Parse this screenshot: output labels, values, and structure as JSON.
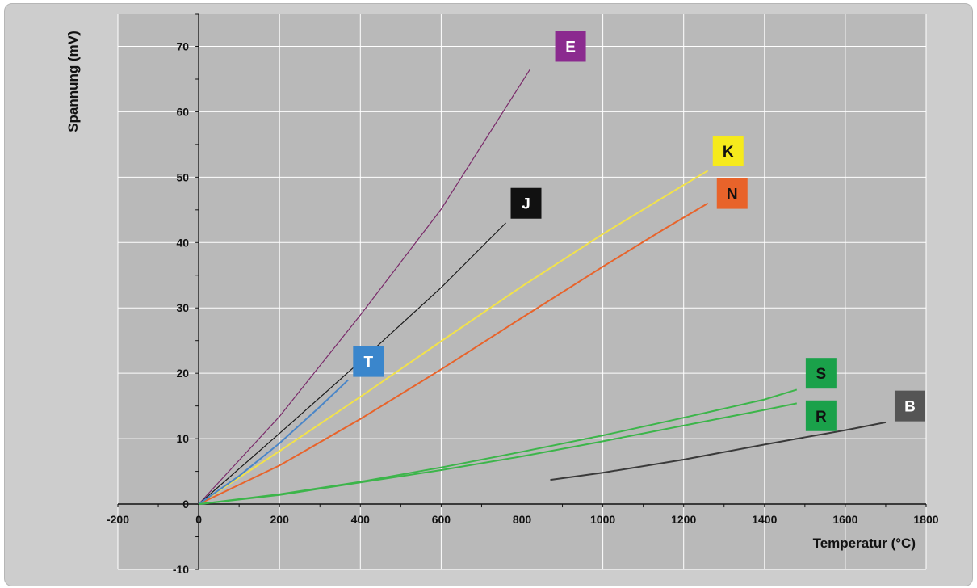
{
  "chart_data": {
    "type": "line",
    "title": "",
    "xlabel": "Temperatur (°C)",
    "ylabel": "Spannung (mV)",
    "xlim": [
      -200,
      1800
    ],
    "ylim": [
      -10,
      75
    ],
    "x_ticks": [
      -200,
      0,
      200,
      400,
      600,
      800,
      1000,
      1200,
      1400,
      1600,
      1800
    ],
    "y_ticks": [
      -10,
      0,
      10,
      20,
      30,
      40,
      50,
      60,
      70
    ],
    "grid": true,
    "legend": "inline labels",
    "series": [
      {
        "name": "E",
        "color": "#7a2a6a",
        "label_bg": "#8b2a8f",
        "label_color": "#ffffff",
        "label_at": [
          920,
          70
        ],
        "points": [
          [
            0,
            0
          ],
          [
            200,
            13.4
          ],
          [
            400,
            28.9
          ],
          [
            600,
            45.1
          ],
          [
            820,
            66.5
          ]
        ]
      },
      {
        "name": "J",
        "color": "#1a1a1a",
        "label_bg": "#111111",
        "label_color": "#ffffff",
        "label_at": [
          810,
          46
        ],
        "points": [
          [
            0,
            0
          ],
          [
            200,
            10.8
          ],
          [
            400,
            21.8
          ],
          [
            600,
            33.1
          ],
          [
            760,
            43.0
          ]
        ]
      },
      {
        "name": "K",
        "color": "#f2e24a",
        "label_bg": "#f6ea1c",
        "label_color": "#111111",
        "label_at": [
          1310,
          54
        ],
        "points": [
          [
            0,
            0
          ],
          [
            200,
            8.1
          ],
          [
            400,
            16.4
          ],
          [
            600,
            24.9
          ],
          [
            800,
            33.3
          ],
          [
            1000,
            41.3
          ],
          [
            1200,
            48.8
          ],
          [
            1260,
            51.0
          ]
        ]
      },
      {
        "name": "N",
        "color": "#e8632a",
        "label_bg": "#e8632a",
        "label_color": "#111111",
        "label_at": [
          1320,
          47.5
        ],
        "points": [
          [
            0,
            0
          ],
          [
            200,
            5.9
          ],
          [
            400,
            13.0
          ],
          [
            600,
            20.6
          ],
          [
            800,
            28.5
          ],
          [
            1000,
            36.3
          ],
          [
            1150,
            42.0
          ],
          [
            1260,
            46.0
          ]
        ]
      },
      {
        "name": "T",
        "color": "#4a86c8",
        "label_bg": "#3a86cc",
        "label_color": "#ffffff",
        "label_at": [
          420,
          21.8
        ],
        "points": [
          [
            0,
            0
          ],
          [
            100,
            4.3
          ],
          [
            200,
            9.3
          ],
          [
            300,
            14.9
          ],
          [
            370,
            19.0
          ]
        ]
      },
      {
        "name": "S",
        "color": "#3cb54a",
        "label_bg": "#1aa14a",
        "label_color": "#111111",
        "label_at": [
          1540,
          20
        ],
        "points": [
          [
            0,
            0
          ],
          [
            200,
            1.4
          ],
          [
            400,
            3.3
          ],
          [
            600,
            5.2
          ],
          [
            800,
            7.3
          ],
          [
            1000,
            9.6
          ],
          [
            1200,
            12.0
          ],
          [
            1400,
            14.4
          ],
          [
            1480,
            15.4
          ]
        ]
      },
      {
        "name": "R",
        "color": "#3cb54a",
        "label_bg": "#1aa14a",
        "label_color": "#111111",
        "label_at": [
          1540,
          13.5
        ],
        "points": [
          [
            0,
            0
          ],
          [
            200,
            1.5
          ],
          [
            400,
            3.4
          ],
          [
            600,
            5.6
          ],
          [
            800,
            8.0
          ],
          [
            1000,
            10.5
          ],
          [
            1200,
            13.2
          ],
          [
            1400,
            16.0
          ],
          [
            1480,
            17.5
          ]
        ]
      },
      {
        "name": "B",
        "color": "#3a3a3a",
        "label_bg": "#555555",
        "label_color": "#ffffff",
        "label_at": [
          1760,
          15
        ],
        "points": [
          [
            870,
            3.7
          ],
          [
            1000,
            4.8
          ],
          [
            1200,
            6.8
          ],
          [
            1400,
            9.1
          ],
          [
            1600,
            11.3
          ],
          [
            1700,
            12.5
          ]
        ]
      }
    ]
  }
}
